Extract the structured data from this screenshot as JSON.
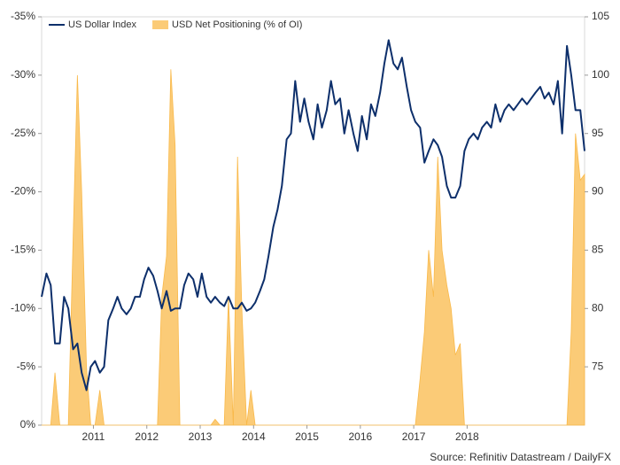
{
  "chart_data": {
    "type": "line",
    "source": "Source: Refinitiv Datastream / DailyFX",
    "x": [
      2010.03,
      2010.12,
      2010.2,
      2010.28,
      2010.37,
      2010.45,
      2010.53,
      2010.62,
      2010.7,
      2010.78,
      2010.87,
      2010.95,
      2011.03,
      2011.12,
      2011.2,
      2011.28,
      2011.37,
      2011.45,
      2011.53,
      2011.62,
      2011.7,
      2011.78,
      2011.87,
      2011.95,
      2012.03,
      2012.12,
      2012.2,
      2012.28,
      2012.37,
      2012.45,
      2012.53,
      2012.62,
      2012.7,
      2012.78,
      2012.87,
      2012.95,
      2013.03,
      2013.12,
      2013.2,
      2013.28,
      2013.37,
      2013.45,
      2013.53,
      2013.62,
      2013.7,
      2013.78,
      2013.87,
      2013.95,
      2014.03,
      2014.12,
      2014.2,
      2014.28,
      2014.37,
      2014.45,
      2014.53,
      2014.62,
      2014.7,
      2014.78,
      2014.87,
      2014.95,
      2015.03,
      2015.12,
      2015.2,
      2015.28,
      2015.37,
      2015.45,
      2015.53,
      2015.62,
      2015.7,
      2015.78,
      2015.87,
      2015.95,
      2016.03,
      2016.12,
      2016.2,
      2016.28,
      2016.37,
      2016.45,
      2016.53,
      2016.62,
      2016.7,
      2016.78,
      2016.87,
      2016.95,
      2017.03,
      2017.12,
      2017.2,
      2017.28,
      2017.37,
      2017.45,
      2017.53,
      2017.62,
      2017.7,
      2017.78,
      2017.87,
      2017.95,
      2018.03,
      2018.12,
      2018.2,
      2018.28,
      2018.37,
      2018.45,
      2018.53,
      2018.62,
      2018.7,
      2018.78,
      2018.87,
      2018.95,
      2019.03,
      2019.12,
      2019.2,
      2019.28,
      2019.37,
      2019.45,
      2019.53,
      2019.62,
      2019.7,
      2019.78,
      2019.87,
      2019.95,
      2020.03,
      2020.12,
      2020.2
    ],
    "series": [
      {
        "name": "US Dollar Index",
        "type": "line",
        "axis": "y2",
        "color": "#0d2f6b",
        "values": [
          81,
          83,
          82,
          77,
          77,
          81,
          80,
          76.5,
          77,
          74.5,
          73,
          75,
          75.5,
          74.5,
          75,
          79,
          80,
          81,
          80,
          79.5,
          80,
          81,
          81,
          82.5,
          83.5,
          82.8,
          81.5,
          80,
          81.5,
          79.8,
          80,
          80,
          82,
          83,
          82.5,
          81,
          83,
          81,
          80.5,
          81,
          80.5,
          80.2,
          81,
          80,
          80,
          80.5,
          79.8,
          80,
          80.5,
          81.5,
          82.5,
          84.5,
          87,
          88.5,
          90.5,
          94.5,
          95,
          99.5,
          96,
          98,
          96,
          94.5,
          97.5,
          95.5,
          97,
          99.5,
          97.5,
          98,
          95,
          97,
          95,
          93.5,
          96.5,
          94.5,
          97.5,
          96.5,
          98.5,
          101,
          103,
          101,
          100.5,
          101.5,
          99,
          97,
          96,
          95.5,
          92.5,
          93.5,
          94.5,
          94,
          93,
          90.5,
          89.5,
          89.5,
          90.5,
          93.5,
          94.5,
          95,
          94.5,
          95.5,
          96,
          95.5,
          97.5,
          96,
          97,
          97.5,
          97,
          97.5,
          98,
          97.5,
          98,
          98.5,
          99,
          98,
          98.5,
          97.5,
          99.5,
          95,
          102.5,
          100,
          97,
          97,
          93.5
        ]
      },
      {
        "name": "USD Net Positioning (% of OI)",
        "type": "area",
        "color": "#f9b94a",
        "values": [
          0,
          0,
          0,
          -4.5,
          0,
          0,
          0,
          -16,
          -30,
          -20,
          -5,
          0,
          0,
          -3,
          0,
          0,
          0,
          0,
          0,
          0,
          0,
          0,
          0,
          0,
          0,
          0,
          0,
          -11,
          -14.5,
          -30.5,
          -24,
          0,
          0,
          0,
          0,
          0,
          0,
          0,
          0,
          -0.5,
          0,
          0,
          -11,
          0,
          -23,
          -10,
          0,
          -3,
          0,
          0,
          0,
          0,
          0,
          0,
          0,
          0,
          0,
          0,
          0,
          0,
          0,
          0,
          0,
          0,
          0,
          0,
          0,
          0,
          0,
          0,
          0,
          0,
          0,
          0,
          0,
          0,
          0,
          0,
          0,
          0,
          0,
          0,
          0,
          0,
          0,
          -4,
          -8,
          -15,
          -11,
          -23,
          -15,
          -12,
          -10,
          -6,
          -7,
          0,
          0,
          0,
          0,
          0,
          0,
          0,
          0,
          0,
          0,
          0,
          0,
          0,
          0,
          0,
          0,
          0,
          0,
          0,
          0,
          0,
          0,
          0,
          0,
          -8,
          -25,
          -21,
          -21.5
        ]
      }
    ],
    "xlim": [
      2010.03,
      2020.2
    ],
    "xticks": [
      2011,
      2012,
      2013,
      2014,
      2015,
      2016,
      2017,
      2018
    ],
    "ylim": [
      0,
      -35
    ],
    "yticks": [
      {
        "value": 0,
        "label": "0%"
      },
      {
        "value": -5,
        "label": "-5%"
      },
      {
        "value": -10,
        "label": "-10%"
      },
      {
        "value": -15,
        "label": "-15%"
      },
      {
        "value": -20,
        "label": "-20%"
      },
      {
        "value": -25,
        "label": "-25%"
      },
      {
        "value": -30,
        "label": "-30%"
      },
      {
        "value": -35,
        "label": "-35%"
      }
    ],
    "y2lim": [
      70,
      105
    ],
    "y2ticks": [
      75,
      80,
      85,
      90,
      95,
      100,
      105
    ],
    "legend": "top-left"
  }
}
